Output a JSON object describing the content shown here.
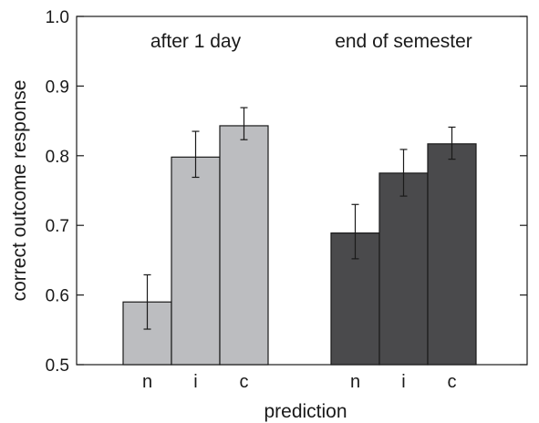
{
  "chart_data": {
    "type": "bar",
    "xlabel": "prediction",
    "ylabel": "correct outcome response",
    "ylim": [
      0.5,
      1.0
    ],
    "yticks": [
      0.5,
      0.6,
      0.7,
      0.8,
      0.9,
      1.0
    ],
    "ytick_labels": [
      "0.5",
      "0.6",
      "0.7",
      "0.8",
      "0.9",
      "1.0"
    ],
    "categories": [
      "n",
      "i",
      "c"
    ],
    "grid": false,
    "groups": [
      {
        "label": "after 1 day",
        "color": "#bcbdc0",
        "values": [
          0.59,
          0.798,
          0.843
        ],
        "err_low": [
          0.551,
          0.769,
          0.823
        ],
        "err_high": [
          0.629,
          0.835,
          0.869
        ]
      },
      {
        "label": "end of semester",
        "color": "#4a4a4c",
        "values": [
          0.689,
          0.775,
          0.817
        ],
        "err_low": [
          0.652,
          0.742,
          0.795
        ],
        "err_high": [
          0.73,
          0.809,
          0.841
        ]
      }
    ]
  }
}
